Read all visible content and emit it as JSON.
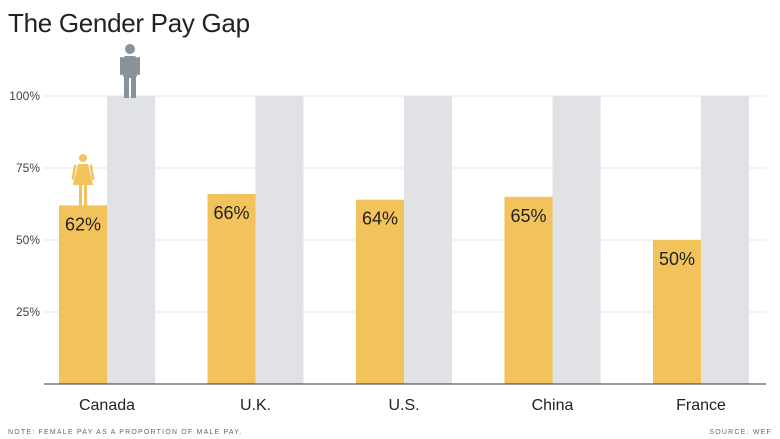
{
  "title": "The Gender Pay Gap",
  "note": "NOTE: FEMALE PAY AS A PROPORTION OF MALE PAY.",
  "source": "SOURCE: WEF",
  "colors": {
    "female": "#f2c35b",
    "male": "#e0e2e6",
    "grid": "#e3e5e8",
    "axis": "#333333",
    "icon_female": "#f2c35b",
    "icon_male": "#8a9299"
  },
  "icons": [
    "female-figure-icon",
    "male-figure-icon"
  ],
  "chart_data": {
    "type": "bar",
    "title": "The Gender Pay Gap",
    "categories": [
      "Canada",
      "U.K.",
      "U.S.",
      "China",
      "France"
    ],
    "series": [
      {
        "values": [
          62,
          66,
          64,
          65,
          50
        ]
      },
      {
        "values": [
          100,
          100,
          100,
          100,
          100
        ]
      }
    ],
    "value_labels": [
      "62%",
      "66%",
      "64%",
      "65%",
      "50%"
    ],
    "y_ticks": [
      25,
      50,
      75,
      100
    ],
    "y_tick_labels": [
      "25%",
      "50%",
      "75%",
      "100%"
    ],
    "ylim": [
      0,
      100
    ],
    "xlabel": "",
    "ylabel": "",
    "grid": true
  }
}
